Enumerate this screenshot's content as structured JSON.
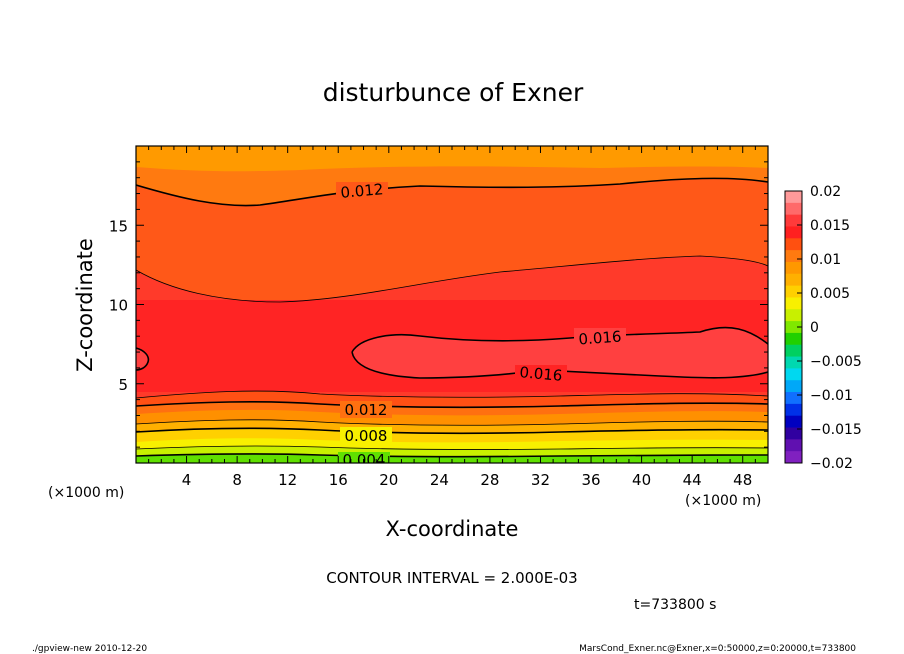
{
  "chart_data": {
    "type": "contour",
    "title": "disturbunce of Exner",
    "xlabel": "X-coordinate",
    "ylabel": "Z-coordinate",
    "x_unit_left": "(×1000 m)",
    "x_unit_right": "(×1000 m)",
    "xlim": [
      0,
      50
    ],
    "ylim": [
      0,
      20
    ],
    "x_ticks": [
      "4",
      "8",
      "12",
      "16",
      "20",
      "24",
      "28",
      "32",
      "36",
      "40",
      "44",
      "48"
    ],
    "y_ticks": [
      "5",
      "10",
      "15"
    ],
    "contour_labels": [
      "0.012",
      "0.016",
      "0.016",
      "0.012",
      "0.008",
      "0.004"
    ],
    "colorbar": {
      "ticks": [
        "0.02",
        "0.015",
        "0.01",
        "0.005",
        "0",
        "−0.005",
        "−0.01",
        "−0.015",
        "−0.02"
      ],
      "colors": [
        "#ff9a9a",
        "#ff6a6a",
        "#ff3a3a",
        "#ff2020",
        "#ff5010",
        "#ff7a10",
        "#ff9800",
        "#ffb000",
        "#ffd000",
        "#f8f000",
        "#c8f000",
        "#80e800",
        "#20d000",
        "#00d060",
        "#00d8b0",
        "#00d8f0",
        "#00a8f8",
        "#1070ff",
        "#0030e8",
        "#0000c0",
        "#3000a0",
        "#6010b0",
        "#8020c0"
      ]
    },
    "contour_interval": "CONTOUR INTERVAL = 2.000E-03",
    "time_label": "t=733800 s",
    "footer_left": "./gpview-new   2010-12-20",
    "footer_right": "MarsCond_Exner.nc@Exner,x=0:50000,z=0:20000,t=733800"
  }
}
